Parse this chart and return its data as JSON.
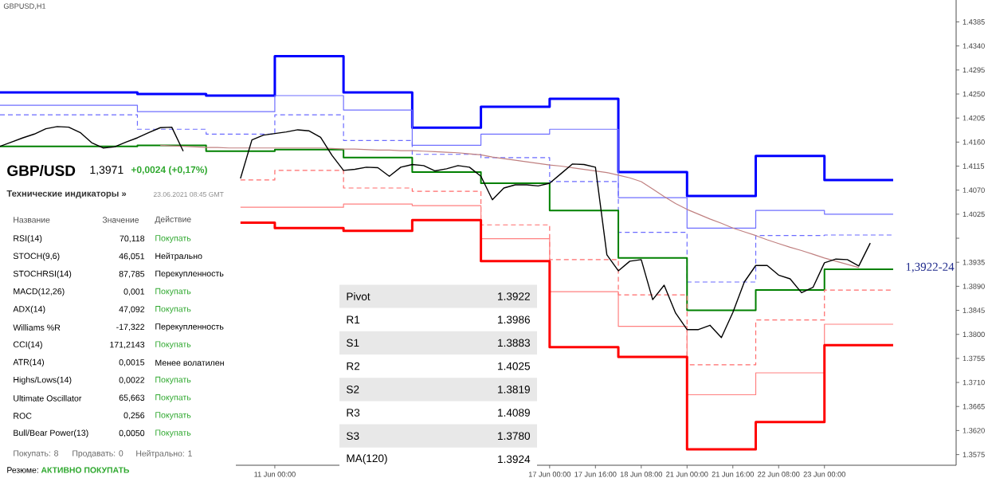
{
  "chart_data": {
    "type": "line",
    "title": "GBPUSD,H1",
    "categories": [
      null,
      null,
      null,
      null,
      null,
      null,
      null,
      null,
      null,
      null,
      null,
      null,
      null,
      null,
      null,
      null,
      null,
      null,
      null,
      null,
      null,
      null,
      null,
      null,
      "11 Jun 00:00",
      null,
      null,
      null,
      null,
      null,
      null,
      null,
      null,
      null,
      null,
      null,
      null,
      null,
      null,
      null,
      null,
      null,
      null,
      null,
      null,
      null,
      null,
      null,
      "17 Jun 00:00",
      null,
      null,
      null,
      "17 Jun 16:00",
      null,
      null,
      null,
      "18 Jun 08:00",
      null,
      null,
      null,
      "21 Jun 00:00",
      null,
      null,
      null,
      "21 Jun 16:00",
      null,
      null,
      null,
      "22 Jun 08:00",
      null,
      null,
      null,
      "23 Jun 00:00",
      null,
      null,
      null,
      null,
      null,
      null,
      null,
      null,
      null,
      null,
      null
    ],
    "ylim": [
      1.3555,
      1.4426
    ],
    "yticks": [
      {
        "value": 1.4385,
        "label": "1.4385"
      },
      {
        "value": 1.434,
        "label": "1.4340"
      },
      {
        "value": 1.4295,
        "label": "1.4295"
      },
      {
        "value": 1.425,
        "label": "1.4250"
      },
      {
        "value": 1.4205,
        "label": "1.4205"
      },
      {
        "value": 1.416,
        "label": "1.4160"
      },
      {
        "value": 1.4115,
        "label": "1.4115"
      },
      {
        "value": 1.407,
        "label": "1.4070"
      },
      {
        "value": 1.4025,
        "label": "1.4025"
      },
      {
        "value": 1.398,
        "label": null
      },
      {
        "value": 1.3935,
        "label": "1.3935"
      },
      {
        "value": 1.389,
        "label": "1.3890"
      },
      {
        "value": 1.3845,
        "label": "1.3845"
      },
      {
        "value": 1.38,
        "label": "1.3800"
      },
      {
        "value": 1.3755,
        "label": "1.3755"
      },
      {
        "value": 1.371,
        "label": "1.3710"
      },
      {
        "value": 1.3665,
        "label": "1.3665"
      },
      {
        "value": 1.362,
        "label": "1.3620"
      },
      {
        "value": 1.3575,
        "label": "1.3575"
      }
    ],
    "series": [
      {
        "type": "step",
        "color": "#0000ff",
        "values": [
          1.4253,
          1.4253,
          1.4253,
          1.4253,
          1.4253,
          1.4253,
          1.4253,
          1.4253,
          1.4253,
          1.4253,
          1.4253,
          1.4253,
          1.425,
          1.425,
          1.425,
          1.425,
          1.425,
          1.425,
          1.4247,
          1.4247,
          1.4247,
          1.4247,
          1.4247,
          1.4247,
          1.4321,
          1.4321,
          1.4321,
          1.4321,
          1.4321,
          1.4321,
          1.4253,
          1.4253,
          1.4253,
          1.4253,
          1.4253,
          1.4253,
          1.4187,
          1.4187,
          1.4187,
          1.4187,
          1.4187,
          1.4187,
          1.4226,
          1.4226,
          1.4226,
          1.4226,
          1.4226,
          1.4226,
          1.4241,
          1.4241,
          1.4241,
          1.4241,
          1.4241,
          1.4241,
          1.4104,
          1.4104,
          1.4104,
          1.4104,
          1.4104,
          1.4104,
          1.4059,
          1.4059,
          1.4059,
          1.4059,
          1.4059,
          1.4059,
          1.4134,
          1.4134,
          1.4134,
          1.4134,
          1.4134,
          1.4134,
          1.4089,
          1.4089,
          1.4089,
          1.4089,
          1.4089,
          1.4089,
          1.4089,
          null,
          null,
          null,
          null,
          null
        ]
      },
      {
        "type": "step",
        "color": "#6f6fff",
        "values": [
          1.4229,
          1.4229,
          1.4229,
          1.4229,
          1.4229,
          1.4229,
          1.4229,
          1.4229,
          1.4229,
          1.4229,
          1.4229,
          1.4229,
          1.4217,
          1.4217,
          1.4217,
          1.4217,
          1.4217,
          1.4217,
          1.4217,
          1.4217,
          1.4217,
          1.4217,
          1.4217,
          1.4217,
          1.4247,
          1.4247,
          1.4247,
          1.4247,
          1.4247,
          1.4247,
          1.422,
          1.422,
          1.422,
          1.422,
          1.422,
          1.422,
          1.4154,
          1.4154,
          1.4154,
          1.4154,
          1.4154,
          1.4154,
          1.4175,
          1.4175,
          1.4175,
          1.4175,
          1.4175,
          1.4175,
          1.4184,
          1.4184,
          1.4184,
          1.4184,
          1.4184,
          1.4184,
          1.4056,
          1.4056,
          1.4056,
          1.4056,
          1.4056,
          1.4056,
          1.3999,
          1.3999,
          1.3999,
          1.3999,
          1.3999,
          1.3999,
          1.4032,
          1.4032,
          1.4032,
          1.4032,
          1.4032,
          1.4032,
          1.4025,
          1.4025,
          1.4025,
          1.4025,
          1.4025,
          1.4025,
          1.4025,
          null,
          null,
          null,
          null,
          null
        ]
      },
      {
        "type": "step",
        "color": "#6b6bff",
        "line_style": "dashed",
        "values": [
          1.4211,
          1.4211,
          1.4211,
          1.4211,
          1.4211,
          1.4211,
          1.4211,
          1.4211,
          1.4211,
          1.4211,
          1.4211,
          1.4211,
          1.4184,
          1.4184,
          1.4184,
          1.4184,
          1.4184,
          1.4184,
          1.4175,
          1.4175,
          1.4175,
          1.4175,
          1.4175,
          1.4175,
          1.4211,
          1.4211,
          1.4211,
          1.4211,
          1.4211,
          1.4211,
          1.4163,
          1.4163,
          1.4163,
          1.4163,
          1.4163,
          1.4163,
          1.4137,
          1.4137,
          1.4137,
          1.4137,
          1.4137,
          1.4137,
          1.4131,
          1.4131,
          1.4131,
          1.4131,
          1.4131,
          1.4131,
          1.4086,
          1.4086,
          1.4086,
          1.4086,
          1.4086,
          1.4086,
          1.3991,
          1.3991,
          1.3991,
          1.3991,
          1.3991,
          1.3991,
          1.3898,
          1.3898,
          1.3898,
          1.3898,
          1.3898,
          1.3898,
          1.3985,
          1.3985,
          1.3985,
          1.3985,
          1.3985,
          1.3985,
          1.3986,
          1.3986,
          1.3986,
          1.3986,
          1.3986,
          1.3986,
          1.3986,
          null,
          null,
          null,
          null,
          null
        ]
      },
      {
        "type": "step",
        "color": "#008000",
        "values": [
          1.4152,
          1.4152,
          1.4152,
          1.4152,
          1.4152,
          1.4152,
          1.4152,
          1.4152,
          1.4152,
          1.4152,
          1.4152,
          1.4152,
          1.4154,
          1.4154,
          1.4154,
          1.4154,
          1.4154,
          1.4154,
          1.4143,
          1.4143,
          1.4143,
          1.4143,
          1.4143,
          1.4143,
          1.4146,
          1.4146,
          1.4146,
          1.4146,
          1.4146,
          1.4146,
          1.4131,
          1.4131,
          1.4131,
          1.4131,
          1.4131,
          1.4131,
          1.4104,
          1.4104,
          1.4104,
          1.4104,
          1.4104,
          1.4104,
          1.4083,
          1.4083,
          1.4083,
          1.4083,
          1.4083,
          1.4083,
          1.4032,
          1.4032,
          1.4032,
          1.4032,
          1.4032,
          1.4032,
          1.3943,
          1.3943,
          1.3943,
          1.3943,
          1.3943,
          1.3943,
          1.3845,
          1.3845,
          1.3845,
          1.3845,
          1.3845,
          1.3845,
          1.3883,
          1.3883,
          1.3883,
          1.3883,
          1.3883,
          1.3883,
          1.3922,
          1.3922,
          1.3922,
          1.3922,
          1.3922,
          1.3922,
          1.3922,
          null,
          null,
          null,
          null,
          null
        ]
      },
      {
        "type": "step",
        "color": "#ff6b6b",
        "line_style": "dashed",
        "values": [
          null,
          null,
          null,
          null,
          null,
          null,
          null,
          null,
          null,
          null,
          null,
          null,
          null,
          null,
          null,
          null,
          null,
          null,
          null,
          null,
          null,
          1.4089,
          1.4089,
          1.4089,
          1.4107,
          1.4107,
          1.4107,
          1.4107,
          1.4107,
          1.4107,
          1.4074,
          1.4074,
          1.4074,
          1.4074,
          1.4074,
          1.4074,
          1.4068,
          1.4068,
          1.4068,
          1.4068,
          1.4068,
          1.4068,
          1.4005,
          1.4005,
          1.4005,
          1.4005,
          1.4005,
          1.4005,
          1.394,
          1.394,
          1.394,
          1.394,
          1.394,
          1.394,
          1.3874,
          1.3874,
          1.3874,
          1.3874,
          1.3874,
          1.3874,
          1.3743,
          1.3743,
          1.3743,
          1.3743,
          1.3743,
          1.3743,
          1.3827,
          1.3827,
          1.3827,
          1.3827,
          1.3827,
          1.3827,
          1.3883,
          1.3883,
          1.3883,
          1.3883,
          1.3883,
          1.3883,
          1.3883,
          null,
          null,
          null,
          null,
          null
        ]
      },
      {
        "type": "step",
        "color": "#ff8080",
        "values": [
          null,
          null,
          null,
          null,
          null,
          null,
          null,
          null,
          null,
          null,
          null,
          null,
          null,
          null,
          null,
          null,
          null,
          null,
          null,
          null,
          null,
          1.4038,
          1.4038,
          1.4038,
          1.4038,
          1.4038,
          1.4038,
          1.4038,
          1.4038,
          1.4038,
          1.4044,
          1.4044,
          1.4044,
          1.4044,
          1.4044,
          1.4044,
          1.4041,
          1.4041,
          1.4041,
          1.4041,
          1.4041,
          1.4041,
          1.3979,
          1.3979,
          1.3979,
          1.3979,
          1.3979,
          1.3979,
          1.388,
          1.388,
          1.388,
          1.388,
          1.388,
          1.388,
          1.3815,
          1.3815,
          1.3815,
          1.3815,
          1.3815,
          1.3815,
          1.3687,
          1.3687,
          1.3687,
          1.3687,
          1.3687,
          1.3687,
          1.3728,
          1.3728,
          1.3728,
          1.3728,
          1.3728,
          1.3728,
          1.3819,
          1.3819,
          1.3819,
          1.3819,
          1.3819,
          1.3819,
          1.3819,
          null,
          null,
          null,
          null,
          null
        ]
      },
      {
        "type": "step",
        "color": "#ff0000",
        "values": [
          null,
          null,
          null,
          null,
          null,
          null,
          null,
          null,
          null,
          null,
          null,
          null,
          null,
          null,
          null,
          null,
          null,
          null,
          null,
          null,
          null,
          1.4009,
          1.4009,
          1.4009,
          1.3999,
          1.3999,
          1.3999,
          1.3999,
          1.3999,
          1.3999,
          1.3994,
          1.3994,
          1.3994,
          1.3994,
          1.3994,
          1.3994,
          1.4014,
          1.4014,
          1.4014,
          1.4014,
          1.4014,
          1.4014,
          1.3937,
          1.3937,
          1.3937,
          1.3937,
          1.3937,
          1.3937,
          1.3776,
          1.3776,
          1.3776,
          1.3776,
          1.3776,
          1.3776,
          1.3758,
          1.3758,
          1.3758,
          1.3758,
          1.3758,
          1.3758,
          1.3585,
          1.3585,
          1.3585,
          1.3585,
          1.3585,
          1.3585,
          1.3636,
          1.3636,
          1.3636,
          1.3636,
          1.3636,
          1.3636,
          1.378,
          1.378,
          1.378,
          1.378,
          1.378,
          1.378,
          1.378,
          null,
          null,
          null,
          null,
          null
        ]
      },
      {
        "type": "line",
        "color": "#c08080",
        "values": [
          null,
          null,
          null,
          null,
          null,
          null,
          null,
          null,
          null,
          null,
          null,
          null,
          null,
          null,
          1.4154,
          1.4153,
          1.4152,
          1.4151,
          1.415,
          1.415,
          1.4149,
          1.4149,
          1.4149,
          1.4149,
          1.4149,
          1.4149,
          1.4149,
          1.4149,
          1.4149,
          1.4148,
          1.4147,
          1.4147,
          1.4146,
          1.4145,
          1.4145,
          1.4144,
          1.4144,
          1.4143,
          1.4142,
          1.4141,
          1.414,
          1.4138,
          1.4136,
          1.4132,
          1.4129,
          1.4126,
          1.4123,
          1.412,
          1.4117,
          1.4115,
          1.4112,
          1.4109,
          1.4106,
          1.4103,
          1.4098,
          1.4093,
          1.4086,
          1.4072,
          1.4058,
          1.4045,
          1.4034,
          1.4025,
          1.4016,
          1.4008,
          1.3999,
          1.3992,
          1.3985,
          1.3977,
          1.397,
          1.3963,
          1.3957,
          1.395,
          1.3943,
          1.3937,
          1.3931,
          1.3925,
          null,
          null,
          null,
          null,
          null,
          null,
          null,
          null
        ]
      },
      {
        "type": "line",
        "color": "#000000",
        "values": [
          1.4152,
          1.416,
          1.4168,
          1.4175,
          1.4185,
          1.4189,
          1.4188,
          1.4178,
          1.4159,
          1.4149,
          1.4151,
          1.416,
          1.4168,
          1.4178,
          1.4187,
          1.4188,
          1.4143,
          null,
          null,
          null,
          null,
          1.4092,
          1.4164,
          1.4173,
          1.4176,
          1.4179,
          1.4183,
          1.4181,
          1.4169,
          1.4135,
          1.4107,
          1.4109,
          1.4113,
          1.4112,
          1.4096,
          1.4113,
          1.4118,
          1.4116,
          1.4106,
          1.411,
          1.4116,
          1.4113,
          1.4096,
          1.4052,
          1.4074,
          1.408,
          1.408,
          1.4078,
          1.4083,
          1.4101,
          1.4119,
          1.4118,
          1.4113,
          1.3949,
          1.3919,
          1.3937,
          1.394,
          1.3865,
          1.3892,
          1.384,
          1.3809,
          1.3809,
          1.3817,
          1.3794,
          1.3841,
          1.3898,
          1.3929,
          1.3929,
          1.3911,
          1.3904,
          1.3878,
          1.3888,
          1.3934,
          1.3941,
          1.394,
          1.3928,
          1.3971,
          null,
          null,
          null,
          null,
          null,
          null,
          null
        ]
      }
    ],
    "annotations": [
      "GBP/USD",
      "1,3971",
      "+0,0024 (+0,17%)",
      "Технические индикаторы »",
      "23.06.2021 08:45 GMT",
      "Название",
      "Значение",
      "Действие",
      "RSI(14)",
      "70,118",
      "Покупать",
      "STOCH(9,6)",
      "46,051",
      "Нейтрально",
      "STOCHRSI(14)",
      "87,785",
      "Перекупленность",
      "MACD(12,26)",
      "0,001",
      "Покупать",
      "ADX(14)",
      "47,092",
      "Покупать",
      "Williams %R",
      "-17,322",
      "Перекупленность",
      "CCI(14)",
      "171,2143",
      "Покупать",
      "ATR(14)",
      "0,0015",
      "Менее волатилен",
      "Highs/Lows(14)",
      "0,0022",
      "Покупать",
      "Ultimate Oscillator",
      "65,663",
      "Покупать",
      "ROC",
      "0,256",
      "Покупать",
      "Bull/Bear Power(13)",
      "0,0050",
      "Покупать",
      "Покупать: 8",
      "Продавать: 0",
      "Нейтрально: 1",
      "Резюме:",
      "АКТИВНО ПОКУПАТЬ",
      "Pivot",
      "1.3922",
      "R1",
      "1.3986",
      "S1",
      "1.3883",
      "R2",
      "1.4025",
      "S2",
      "1.3819",
      "R3",
      "1.4089",
      "S3",
      "1.3780",
      "MA(120)",
      "1.3924",
      "1,3922-24"
    ]
  }
}
